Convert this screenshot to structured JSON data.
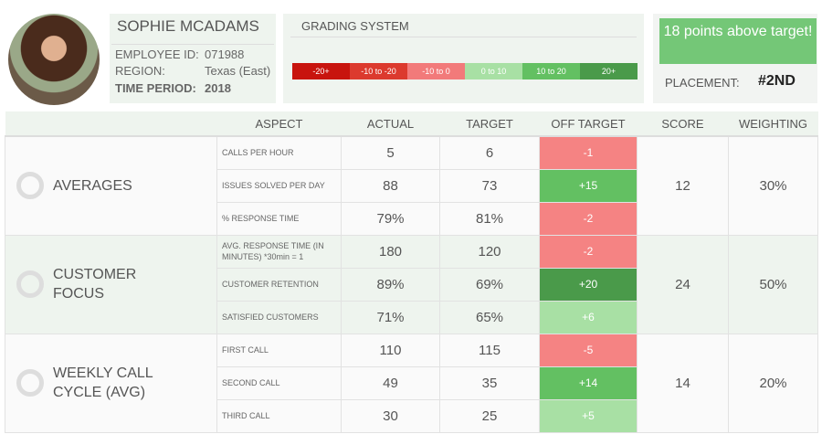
{
  "profile": {
    "name": "SOPHIE MCADAMS",
    "employee_id_label": "EMPLOYEE ID:",
    "employee_id": "071988",
    "region_label": "REGION:",
    "region": "Texas (East)",
    "period_label": "TIME PERIOD:",
    "period": "2018"
  },
  "grading": {
    "title": "GRADING SYSTEM",
    "bands": [
      {
        "label": "-20+",
        "color": "#c8140e"
      },
      {
        "label": "-10 to -20",
        "color": "#dc3a2e"
      },
      {
        "label": "-10 to 0",
        "color": "#f27a7a"
      },
      {
        "label": "0 to 10",
        "color": "#a8e0a4"
      },
      {
        "label": "10 to 20",
        "color": "#63c062"
      },
      {
        "label": "20+",
        "color": "#4a9a4a"
      }
    ]
  },
  "summary": {
    "message": "18 points above target!",
    "placement_label": "PLACEMENT:",
    "placement": "#2ND"
  },
  "table": {
    "headers": [
      "ASPECT",
      "ACTUAL",
      "TARGET",
      "OFF TARGET",
      "SCORE",
      "WEIGHTING"
    ],
    "groups": [
      {
        "name": "AVERAGES",
        "score": "12",
        "weighting": "30%",
        "rows": [
          {
            "aspect": "CALLS PER HOUR",
            "actual": "5",
            "target": "6",
            "off": "-1",
            "color": "#f58383"
          },
          {
            "aspect": "ISSUES SOLVED PER DAY",
            "actual": "88",
            "target": "73",
            "off": "+15",
            "color": "#63c062"
          },
          {
            "aspect": "% RESPONSE TIME",
            "actual": "79%",
            "target": "81%",
            "off": "-2",
            "color": "#f58383"
          }
        ]
      },
      {
        "name": "CUSTOMER FOCUS",
        "score": "24",
        "weighting": "50%",
        "rows": [
          {
            "aspect": "AVG. RESPONSE TIME (IN MINUTES)  *30min = 1",
            "actual": "180",
            "target": "120",
            "off": "-2",
            "color": "#f58383"
          },
          {
            "aspect": "CUSTOMER RETENTION",
            "actual": "89%",
            "target": "69%",
            "off": "+20",
            "color": "#4a9a4a"
          },
          {
            "aspect": "SATISFIED CUSTOMERS",
            "actual": "71%",
            "target": "65%",
            "off": "+6",
            "color": "#a8e0a4"
          }
        ]
      },
      {
        "name": "WEEKLY CALL CYCLE (AVG)",
        "score": "14",
        "weighting": "20%",
        "rows": [
          {
            "aspect": "FIRST CALL",
            "actual": "110",
            "target": "115",
            "off": "-5",
            "color": "#f58383"
          },
          {
            "aspect": "SECOND CALL",
            "actual": "49",
            "target": "35",
            "off": "+14",
            "color": "#63c062"
          },
          {
            "aspect": "THIRD CALL",
            "actual": "30",
            "target": "25",
            "off": "+5",
            "color": "#a8e0a4"
          }
        ]
      }
    ]
  }
}
